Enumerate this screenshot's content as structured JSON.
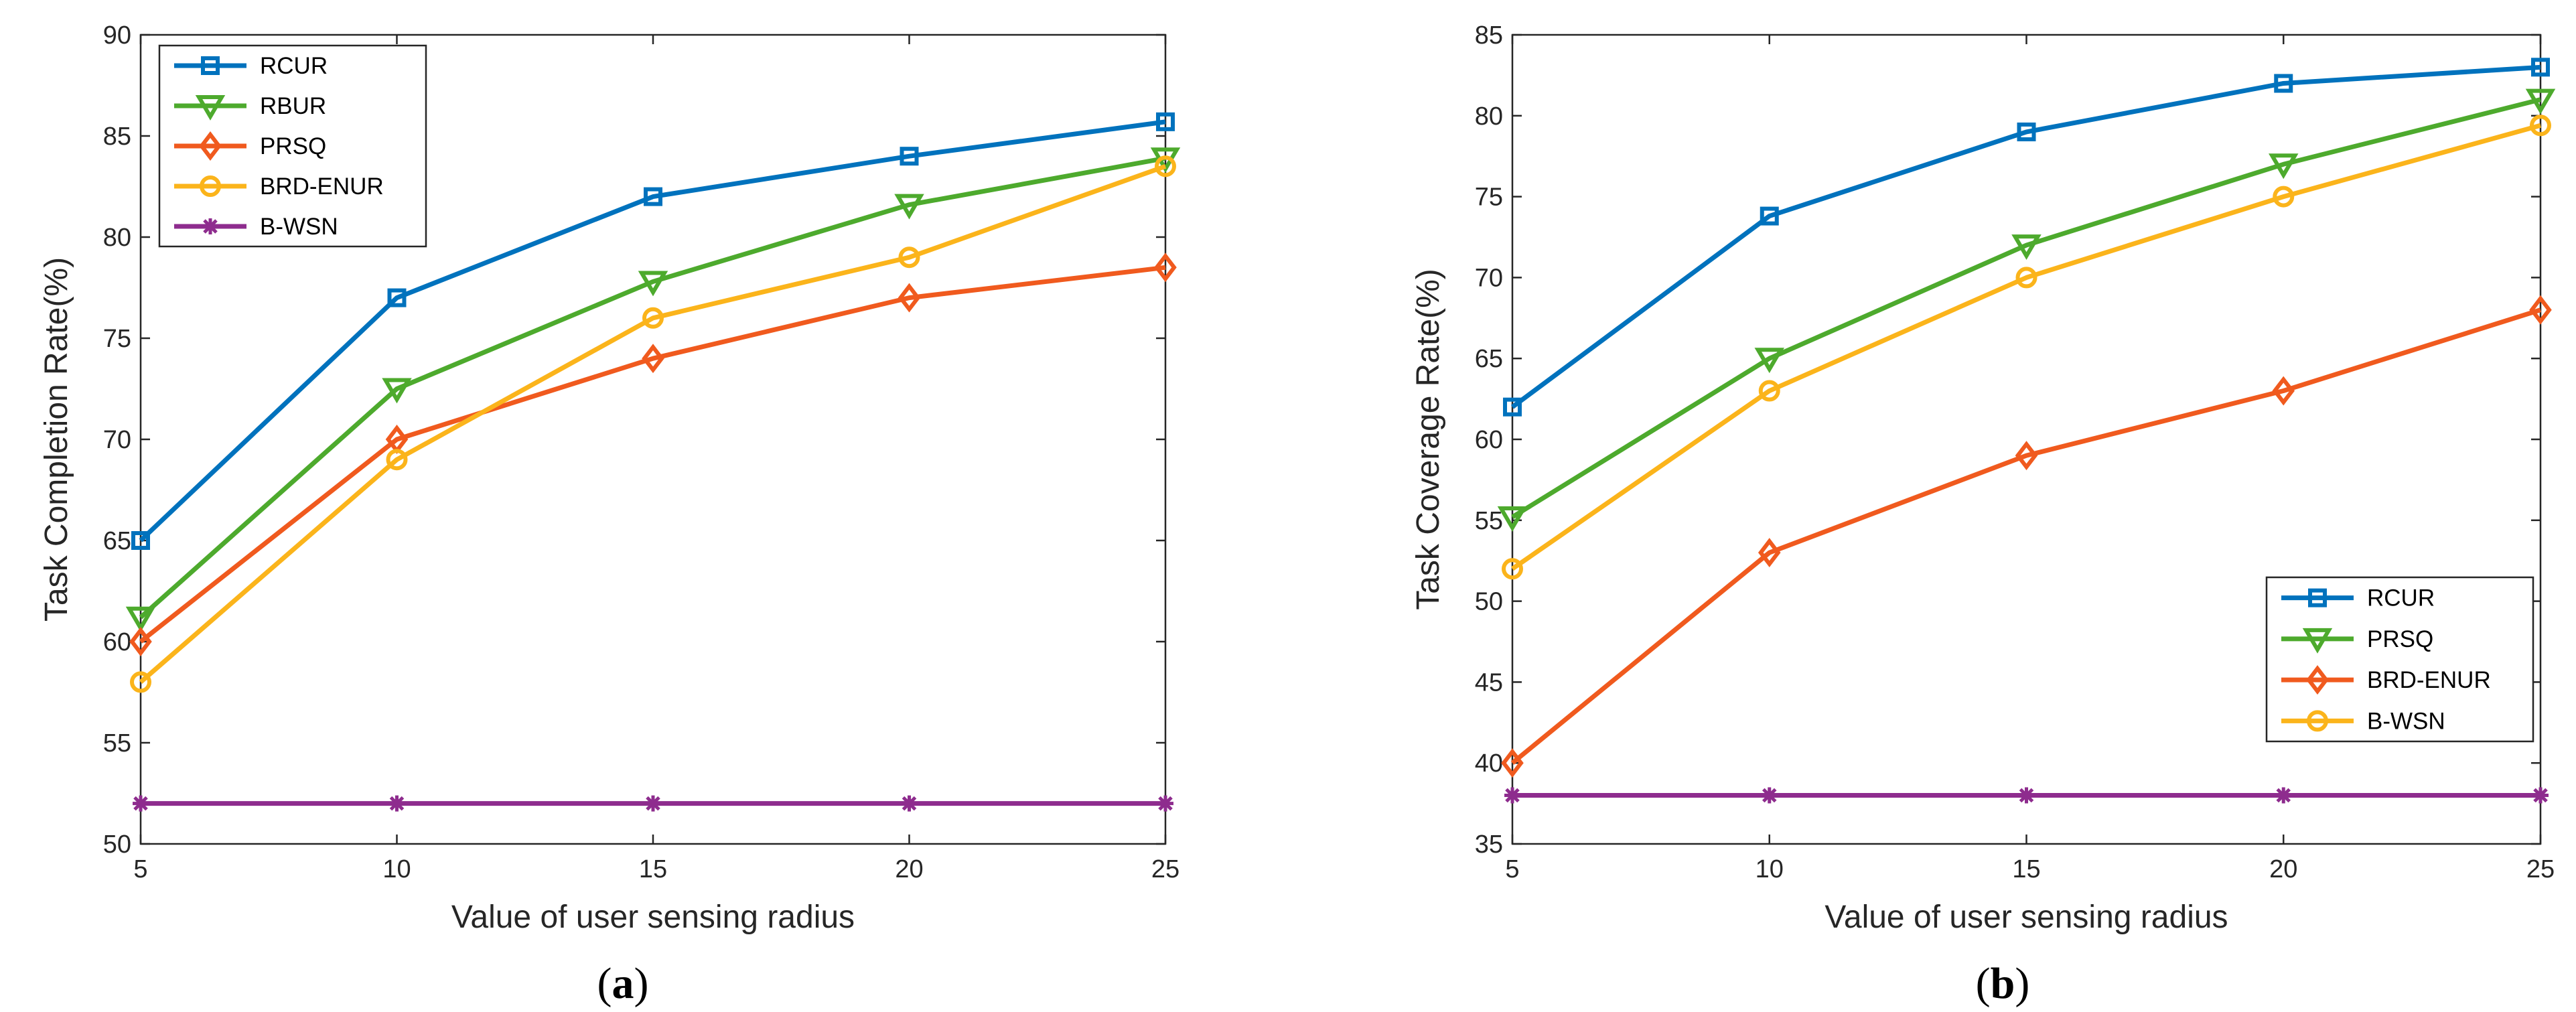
{
  "chart_data": [
    {
      "type": "line",
      "panel_label": {
        "open": "(",
        "letter": "a",
        "close": ")"
      },
      "xlabel": "Value of user sensing radius",
      "ylabel": "Task Completion Rate(%)",
      "x": [
        5,
        10,
        15,
        20,
        25
      ],
      "xlim": [
        5,
        25
      ],
      "ylim": [
        50,
        90
      ],
      "xticks": [
        5,
        10,
        15,
        20,
        25
      ],
      "yticks": [
        50,
        55,
        60,
        65,
        70,
        75,
        80,
        85,
        90
      ],
      "legend_position": "top-left",
      "series": [
        {
          "name": "RCUR",
          "color": "#0072BD",
          "marker": "square",
          "values": [
            65,
            77,
            82,
            84,
            85.7
          ]
        },
        {
          "name": "RBUR",
          "color": "#4DAA2D",
          "marker": "triangle-down",
          "values": [
            61.2,
            72.5,
            77.8,
            81.6,
            83.9
          ]
        },
        {
          "name": "PRSQ",
          "color": "#F05A1E",
          "marker": "diamond",
          "values": [
            60,
            70,
            74,
            77,
            78.5
          ]
        },
        {
          "name": "BRD-ENUR",
          "color": "#FBB41B",
          "marker": "circle",
          "values": [
            58,
            69,
            76,
            79,
            83.5
          ]
        },
        {
          "name": "B-WSN",
          "color": "#8E2C8E",
          "marker": "asterisk",
          "values": [
            52,
            52,
            52,
            52,
            52
          ]
        }
      ]
    },
    {
      "type": "line",
      "panel_label": {
        "open": "(",
        "letter": "b",
        "close": ")"
      },
      "xlabel": "Value of user sensing radius",
      "ylabel": "Task Coverage Rate(%)",
      "x": [
        5,
        10,
        15,
        20,
        25
      ],
      "xlim": [
        5,
        25
      ],
      "ylim": [
        35,
        85
      ],
      "xticks": [
        5,
        10,
        15,
        20,
        25
      ],
      "yticks": [
        35,
        40,
        45,
        50,
        55,
        60,
        65,
        70,
        75,
        80,
        85
      ],
      "legend_position": "bottom-right",
      "series": [
        {
          "name": "RCUR",
          "color": "#0072BD",
          "marker": "square",
          "values": [
            62,
            73.8,
            79,
            82,
            83
          ]
        },
        {
          "name": "PRSQ",
          "color": "#4DAA2D",
          "marker": "triangle-down",
          "values": [
            55.2,
            65,
            72,
            77,
            81
          ]
        },
        {
          "name": "BRD-ENUR",
          "color": "#F05A1E",
          "marker": "diamond",
          "values": [
            40,
            53,
            59,
            63,
            68
          ]
        },
        {
          "name": "B-WSN",
          "color": "#FBB41B",
          "marker": "circle",
          "values": [
            52,
            63,
            70,
            75,
            79.4
          ]
        },
        {
          "name": "",
          "color": "#8E2C8E",
          "marker": "asterisk",
          "values": [
            38,
            38,
            38,
            38,
            38
          ]
        }
      ]
    }
  ]
}
